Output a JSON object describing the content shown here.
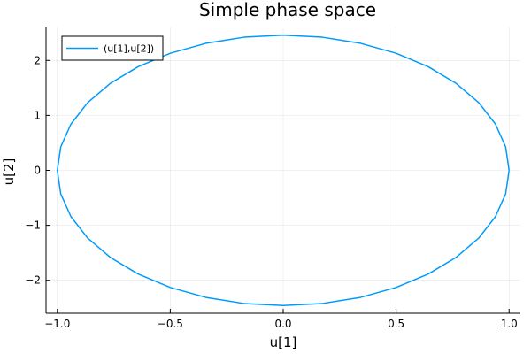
{
  "chart_data": {
    "type": "line",
    "title": "Simple phase space",
    "xlabel": "u[1]",
    "ylabel": "u[2]",
    "xlim": [
      -1.05,
      1.05
    ],
    "ylim": [
      -2.6,
      2.6
    ],
    "xticks": [
      -1.0,
      -0.5,
      0.0,
      0.5,
      1.0
    ],
    "xtick_labels": [
      "−1.0",
      "−0.5",
      "0.0",
      "0.5",
      "1.0"
    ],
    "yticks": [
      -2,
      -1,
      0,
      1,
      2
    ],
    "ytick_labels": [
      "−2",
      "−1",
      "0",
      "1",
      "2"
    ],
    "grid": true,
    "legend_position": "top-left",
    "series": [
      {
        "name": "(u[1],u[2])",
        "color": "#009AFA",
        "x": [
          1.0,
          0.9848,
          0.9397,
          0.866,
          0.766,
          0.6428,
          0.5,
          0.342,
          0.1736,
          0.0,
          -0.1736,
          -0.342,
          -0.5,
          -0.6428,
          -0.766,
          -0.866,
          -0.9397,
          -0.9848,
          -1.0,
          -0.9848,
          -0.9397,
          -0.866,
          -0.766,
          -0.6428,
          -0.5,
          -0.342,
          -0.1736,
          0.0,
          0.1736,
          0.342,
          0.5,
          0.6428,
          0.766,
          0.866,
          0.9397,
          0.9848,
          1.0
        ],
        "y": [
          0.0,
          0.4271,
          0.8412,
          1.23,
          1.5812,
          1.8845,
          2.1305,
          2.3115,
          2.4219,
          2.4594,
          2.4219,
          2.3115,
          2.1305,
          1.8845,
          1.5812,
          1.23,
          0.8412,
          0.4271,
          0.0,
          -0.4271,
          -0.8412,
          -1.23,
          -1.5812,
          -1.8845,
          -2.1305,
          -2.3115,
          -2.4219,
          -2.4594,
          -2.4219,
          -2.3115,
          -2.1305,
          -1.8845,
          -1.5812,
          -1.23,
          -0.8412,
          -0.4271,
          0.0
        ]
      }
    ]
  }
}
